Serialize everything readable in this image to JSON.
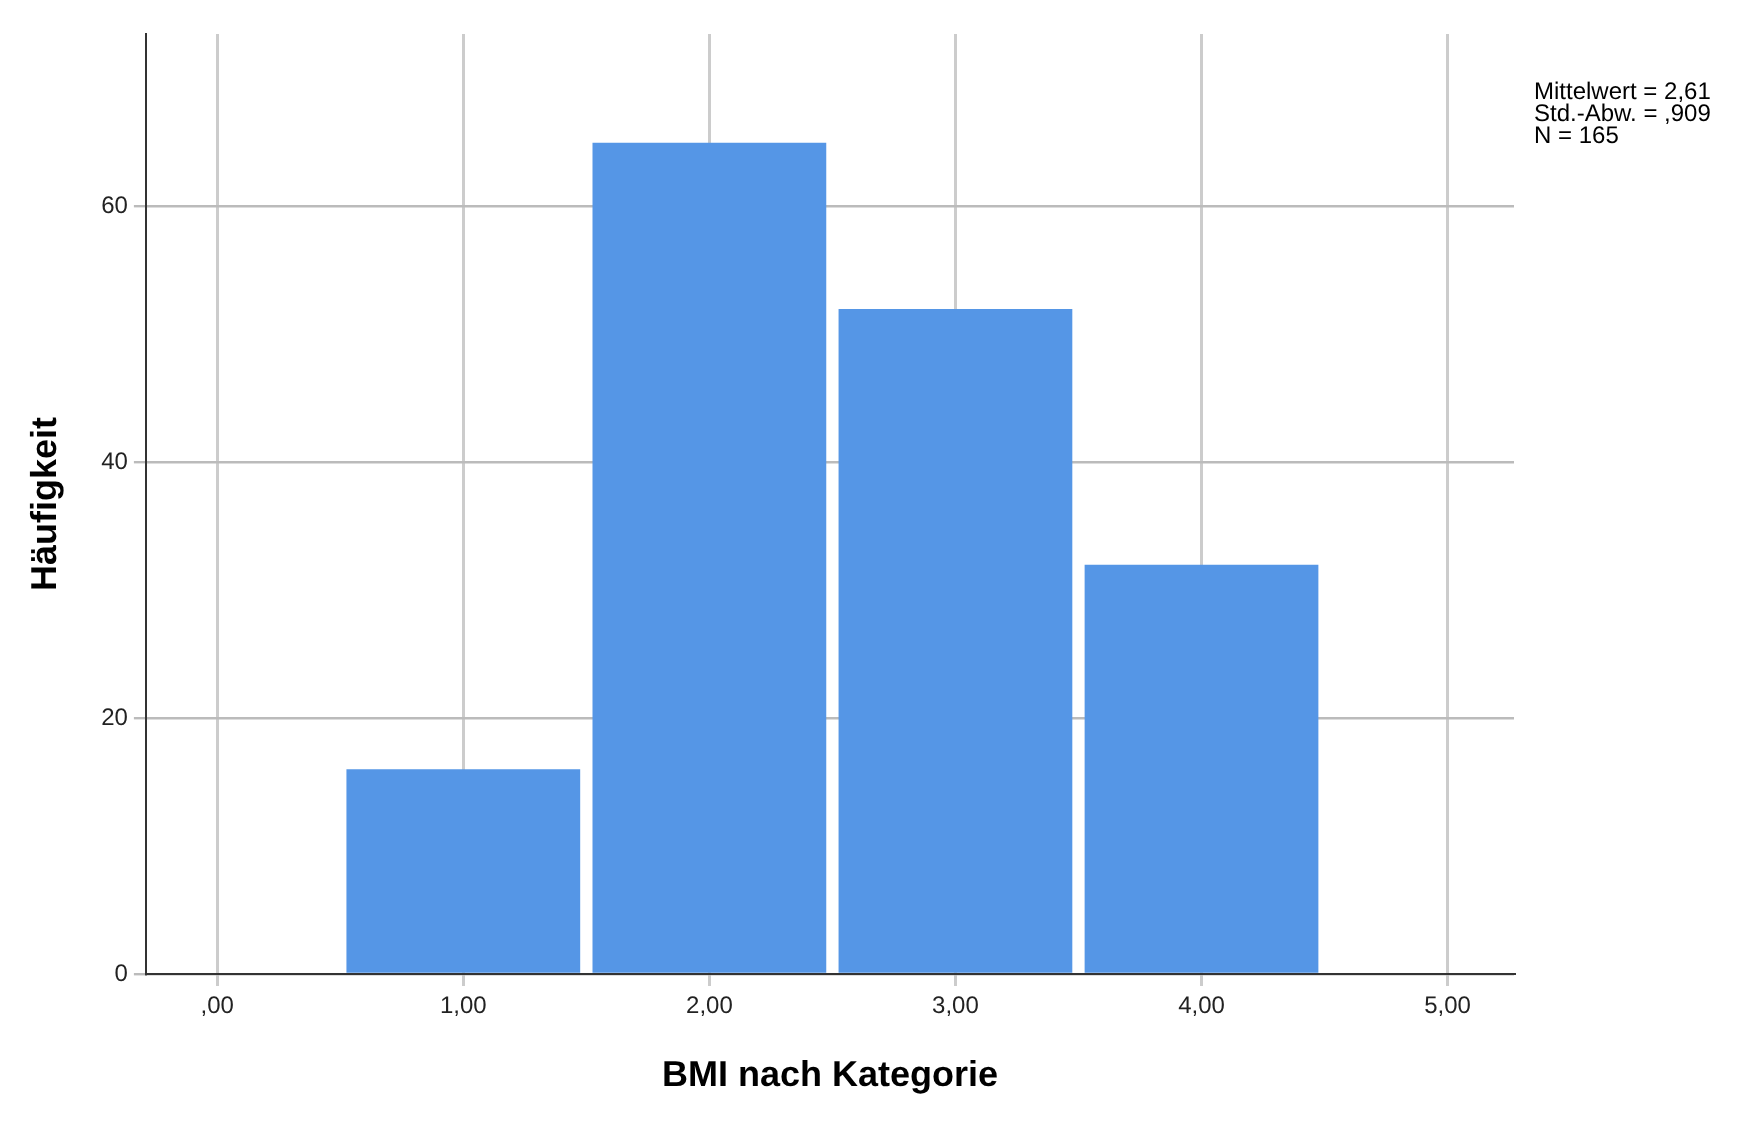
{
  "chart_data": {
    "type": "histogram",
    "xlabel": "BMI nach Kategorie",
    "ylabel": "Häufigkeit",
    "bins": [
      0.5,
      1.5,
      2.5,
      3.5,
      4.5
    ],
    "values": [
      16,
      65,
      52,
      32
    ],
    "color": "#5596e6",
    "xlim": [
      -0.29,
      5.27
    ],
    "xticks": [
      {
        "value": 0,
        "label": ",00"
      },
      {
        "value": 1,
        "label": "1,00"
      },
      {
        "value": 2,
        "label": "2,00"
      },
      {
        "value": 3,
        "label": "3,00"
      },
      {
        "value": 4,
        "label": "4,00"
      },
      {
        "value": 5,
        "label": "5,00"
      }
    ],
    "ylim": [
      0,
      73.5
    ],
    "yticks": [
      0,
      20,
      40,
      60
    ],
    "grid": true,
    "legend": false,
    "annotations": [
      "Mittelwert = 2,61",
      "Std.-Abw. = ,909",
      "N = 165"
    ]
  }
}
